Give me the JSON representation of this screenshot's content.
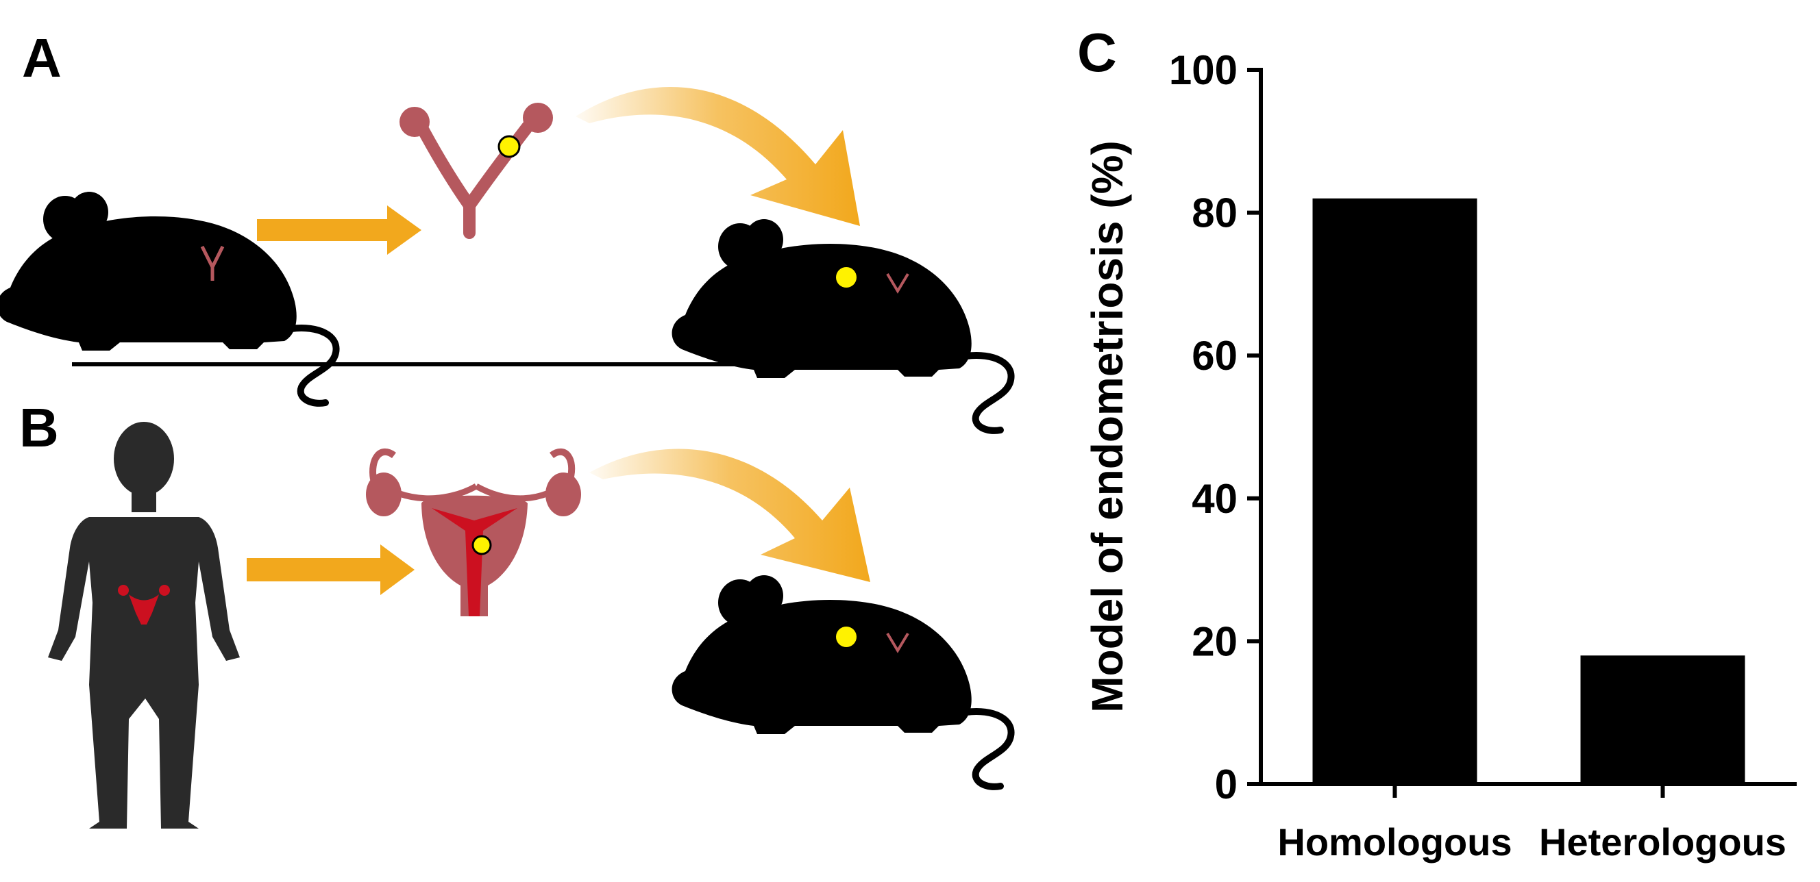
{
  "panels": {
    "a_label": "A",
    "b_label": "B",
    "c_label": "C"
  },
  "illustration": {
    "panel_a_icons": [
      "mouse-donor-icon",
      "arrow-right-icon",
      "mouse-uterus-icon",
      "curved-arrow-icon",
      "mouse-recipient-icon"
    ],
    "panel_b_icons": [
      "human-silhouette-icon",
      "arrow-right-icon",
      "human-uterus-icon",
      "curved-arrow-icon",
      "mouse-recipient-icon"
    ],
    "colors": {
      "silhouette": "#000000",
      "arrow": "#f2a81d",
      "uterus": "#b5585e",
      "uterus_red": "#cc1020",
      "lesion": "#fff200"
    }
  },
  "chart_data": {
    "type": "bar",
    "categories": [
      "Homologous",
      "Heterologous"
    ],
    "values": [
      82,
      18
    ],
    "title": "",
    "xlabel": "",
    "ylabel": "Model of endometriosis (%)",
    "ylim": [
      0,
      100
    ],
    "yticks": [
      0,
      20,
      40,
      60,
      80,
      100
    ],
    "grid": false,
    "bar_color": "#000000"
  }
}
